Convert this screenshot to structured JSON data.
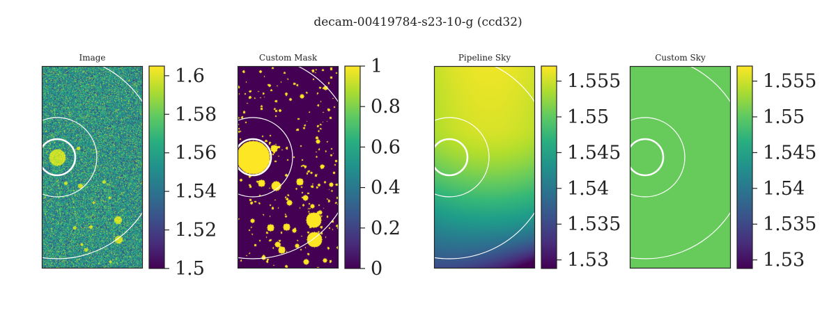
{
  "figure": {
    "suptitle": "decam-00419784-s23-10-g (ccd32)"
  },
  "chart_data": [
    {
      "type": "heatmap",
      "title": "Image",
      "colormap": "viridis",
      "content": "noisy-image",
      "clim": [
        1.5,
        1.605
      ],
      "colorbar_ticks": [
        "1.5",
        "1.52",
        "1.54",
        "1.56",
        "1.58",
        "1.6"
      ],
      "colorbar_tick_values": [
        1.5,
        1.52,
        1.54,
        1.56,
        1.58,
        1.6
      ]
    },
    {
      "type": "heatmap",
      "title": "Custom Mask",
      "colormap": "viridis",
      "content": "binary-mask",
      "clim": [
        0,
        1
      ],
      "colorbar_ticks": [
        "0",
        "0.2",
        "0.4",
        "0.6",
        "0.8",
        "1"
      ],
      "colorbar_tick_values": [
        0,
        0.2,
        0.4,
        0.6,
        0.8,
        1
      ]
    },
    {
      "type": "heatmap",
      "title": "Pipeline Sky",
      "colormap": "viridis",
      "content": "smooth-sky",
      "clim": [
        1.5288,
        1.5571
      ],
      "colorbar_ticks": [
        "1.53",
        "1.535",
        "1.54",
        "1.545",
        "1.55",
        "1.555"
      ],
      "colorbar_tick_values": [
        1.53,
        1.535,
        1.54,
        1.545,
        1.55,
        1.555
      ]
    },
    {
      "type": "heatmap",
      "title": "Custom Sky",
      "colormap": "viridis",
      "content": "constant-sky",
      "constant_value": 1.5505,
      "clim": [
        1.5288,
        1.5571
      ],
      "colorbar_ticks": [
        "1.53",
        "1.535",
        "1.54",
        "1.545",
        "1.55",
        "1.555"
      ],
      "colorbar_tick_values": [
        1.53,
        1.535,
        1.54,
        1.545,
        1.55,
        1.555
      ]
    }
  ]
}
